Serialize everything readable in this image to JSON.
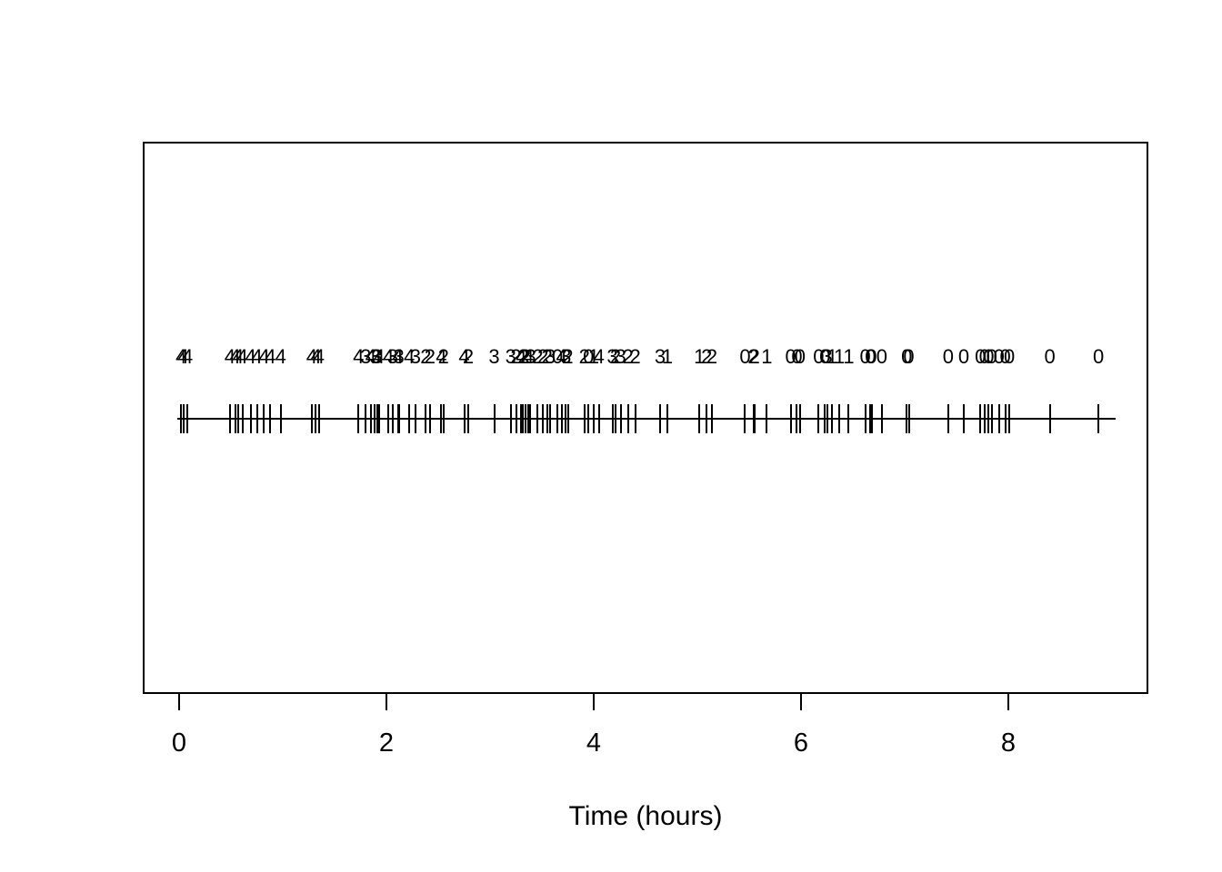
{
  "chart_data": {
    "type": "scatter",
    "style": "event-rug-timeline",
    "title": "",
    "xlabel": "Time (hours)",
    "ylabel": "",
    "xlim": [
      0,
      9
    ],
    "x_ticks": [
      0,
      2,
      4,
      6,
      8
    ],
    "grid": "off",
    "legend": "none",
    "line_color": "#000000",
    "events": {
      "times": [
        0.02,
        0.04,
        0.08,
        0.49,
        0.54,
        0.57,
        0.61,
        0.69,
        0.75,
        0.82,
        0.88,
        0.98,
        1.28,
        1.32,
        1.35,
        1.73,
        1.8,
        1.85,
        1.89,
        1.91,
        1.93,
        2.02,
        2.06,
        2.11,
        2.12,
        2.22,
        2.28,
        2.38,
        2.42,
        2.53,
        2.55,
        2.75,
        2.79,
        3.04,
        3.2,
        3.25,
        3.3,
        3.32,
        3.34,
        3.37,
        3.39,
        3.46,
        3.51,
        3.55,
        3.58,
        3.65,
        3.69,
        3.73,
        3.75,
        3.91,
        3.95,
        4.0,
        4.05,
        4.18,
        4.21,
        4.26,
        4.33,
        4.4,
        4.64,
        4.71,
        5.02,
        5.09,
        5.14,
        5.46,
        5.54,
        5.55,
        5.67,
        5.9,
        5.96,
        5.99,
        6.17,
        6.23,
        6.25,
        6.3,
        6.37,
        6.46,
        6.62,
        6.67,
        6.68,
        6.78,
        7.02,
        7.04,
        7.42,
        7.57,
        7.73,
        7.77,
        7.81,
        7.84,
        7.91,
        7.97,
        8.01,
        8.4,
        8.87
      ],
      "counts": [
        4,
        4,
        4,
        4,
        4,
        4,
        4,
        4,
        4,
        4,
        4,
        4,
        4,
        4,
        4,
        4,
        3,
        4,
        3,
        3,
        4,
        4,
        3,
        4,
        3,
        4,
        3,
        2,
        2,
        4,
        2,
        4,
        2,
        3,
        3,
        2,
        4,
        2,
        2,
        4,
        3,
        2,
        2,
        2,
        3,
        0,
        4,
        3,
        2,
        2,
        0,
        1,
        4,
        3,
        2,
        3,
        2,
        2,
        3,
        1,
        1,
        2,
        2,
        0,
        2,
        2,
        1,
        0,
        0,
        0,
        0,
        0,
        3,
        1,
        1,
        1,
        0,
        0,
        0,
        0,
        0,
        0,
        0,
        0,
        0,
        0,
        0,
        0,
        0,
        0,
        0,
        0,
        0
      ]
    },
    "timeline_range_hours": [
      0,
      9.0
    ]
  }
}
